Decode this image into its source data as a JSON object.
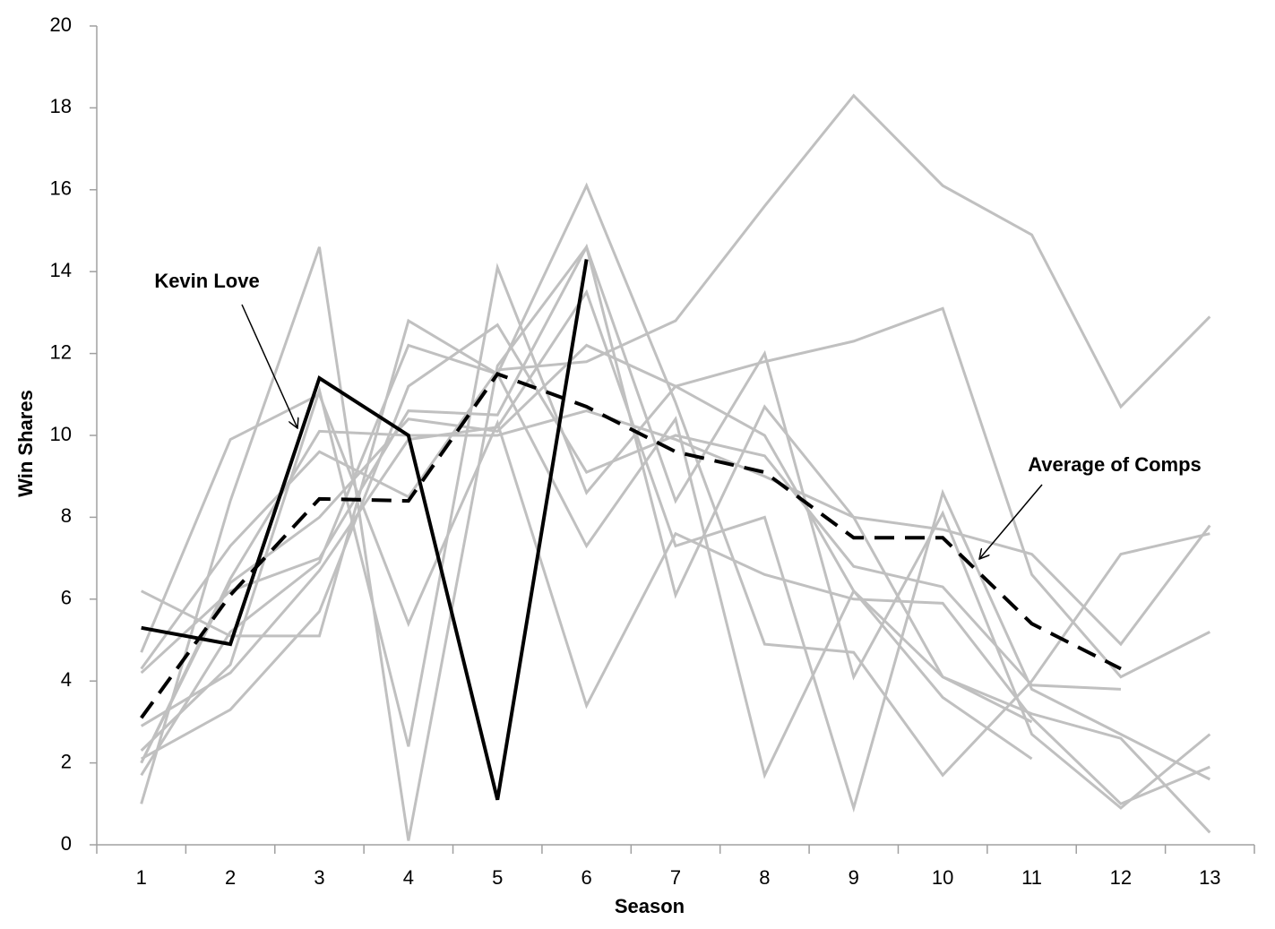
{
  "chart_data": {
    "type": "line",
    "xlabel": "Season",
    "ylabel": "Win Shares",
    "categories": [
      1,
      2,
      3,
      4,
      5,
      6,
      7,
      8,
      9,
      10,
      11,
      12,
      13
    ],
    "ylim": [
      0,
      20
    ],
    "yticks": [
      0,
      2,
      4,
      6,
      8,
      10,
      12,
      14,
      16,
      18,
      20
    ],
    "annotations": [
      {
        "text": "Kevin Love"
      },
      {
        "text": "Average of Comps"
      }
    ],
    "series": [
      {
        "color": "#c0c0c0",
        "values": [
          4.3,
          7.3,
          9.6,
          8.5,
          11.6,
          11.8,
          12.8,
          15.6,
          18.3,
          16.1,
          14.9,
          10.7,
          12.9
        ]
      },
      {
        "color": "#c0c0c0",
        "values": [
          2.0,
          6.4,
          8.0,
          10.4,
          10.1,
          12.2,
          11.2,
          11.8,
          12.3,
          13.1,
          6.6,
          4.1,
          5.2
        ]
      },
      {
        "color": "#c0c0c0",
        "values": [
          6.2,
          5.1,
          5.1,
          12.8,
          11.5,
          16.1,
          10.8,
          4.9,
          4.7,
          1.7,
          4.0,
          7.1,
          7.6
        ]
      },
      {
        "color": "#c0c0c0",
        "values": [
          1.0,
          8.4,
          14.6,
          0.1,
          11.7,
          14.6,
          6.1,
          10.7,
          8.0,
          7.7,
          7.1,
          4.9,
          7.8
        ]
      },
      {
        "color": "#c0c0c0",
        "values": [
          2.3,
          4.4,
          11.1,
          2.4,
          14.1,
          8.6,
          11.2,
          10.0,
          6.2,
          3.6,
          2.1,
          null,
          null
        ]
      },
      {
        "color": "#c0c0c0",
        "values": [
          1.7,
          5.2,
          6.9,
          12.2,
          11.5,
          7.3,
          10.4,
          1.7,
          6.2,
          4.1,
          3.0,
          null,
          null
        ]
      },
      {
        "color": "#c0c0c0",
        "values": [
          2.1,
          3.3,
          5.7,
          11.2,
          12.7,
          9.1,
          10.0,
          9.5,
          6.8,
          6.3,
          3.9,
          3.8,
          null
        ]
      },
      {
        "color": "#c0c0c0",
        "values": [
          4.7,
          9.9,
          11.0,
          5.4,
          10.3,
          3.4,
          7.6,
          6.6,
          6.0,
          5.9,
          3.1,
          1.0,
          1.9
        ]
      },
      {
        "color": "#c0c0c0",
        "values": [
          2.9,
          4.2,
          6.7,
          9.9,
          10.2,
          13.5,
          7.3,
          8.0,
          0.9,
          8.6,
          3.8,
          2.7,
          1.6
        ]
      },
      {
        "color": "#c0c0c0",
        "values": [
          4.2,
          6.2,
          7.0,
          10.6,
          10.5,
          14.6,
          8.4,
          12.0,
          4.1,
          8.1,
          2.7,
          0.9,
          2.7
        ]
      },
      {
        "color": "#c0c0c0",
        "values": [
          2.0,
          6.5,
          10.1,
          10.0,
          10.0,
          10.6,
          9.9,
          9.0,
          8.0,
          4.1,
          3.2,
          2.6,
          0.3
        ]
      },
      {
        "color": "#000000",
        "style": "dashed",
        "values": [
          3.1,
          6.1,
          8.45,
          8.4,
          11.5,
          10.7,
          9.6,
          9.1,
          7.5,
          7.5,
          5.4,
          4.3,
          null
        ]
      },
      {
        "color": "#000000",
        "style": "solid",
        "values": [
          5.3,
          4.9,
          11.4,
          10.0,
          1.1,
          14.3,
          null,
          null,
          null,
          null,
          null,
          null,
          null
        ]
      }
    ]
  }
}
